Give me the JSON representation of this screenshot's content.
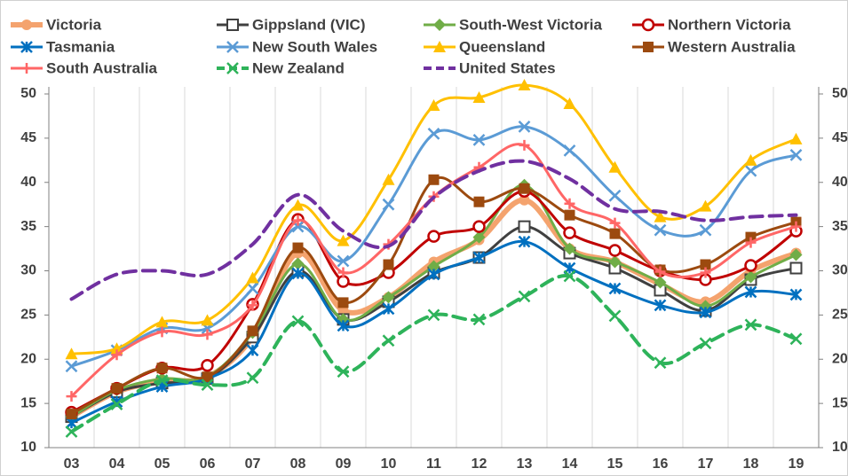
{
  "chart_data": {
    "type": "line",
    "categories": [
      "03",
      "04",
      "05",
      "06",
      "07",
      "08",
      "09",
      "10",
      "11",
      "12",
      "13",
      "14",
      "15",
      "16",
      "17",
      "18",
      "19"
    ],
    "ylim": [
      10,
      50
    ],
    "yticks": [
      10,
      15,
      20,
      25,
      30,
      35,
      40,
      45,
      50
    ],
    "y2lim": [
      10,
      50
    ],
    "y2ticks": [
      10,
      15,
      20,
      25,
      30,
      35,
      40,
      45,
      50
    ],
    "legend": "top",
    "series": [
      {
        "name": "Victoria",
        "color": "#f4a36e",
        "marker": "circle",
        "width": 6,
        "values": [
          13.5,
          16.3,
          17.5,
          18,
          22.5,
          32,
          25.5,
          27,
          31,
          33.5,
          38,
          32.5,
          31,
          28.5,
          26.5,
          30,
          32
        ]
      },
      {
        "name": "Gippsland (VIC)",
        "color": "#404040",
        "marker": "square-open",
        "width": 3,
        "values": [
          13.5,
          16.3,
          17.3,
          17.8,
          22.5,
          30,
          24.5,
          26.5,
          29.8,
          31.5,
          35,
          32,
          30.3,
          27.8,
          25.5,
          29,
          30.3
        ]
      },
      {
        "name": "South-West Victoria",
        "color": "#70ad47",
        "marker": "diamond",
        "width": 3,
        "values": [
          13.5,
          16.5,
          17.8,
          18,
          23,
          30.8,
          24.5,
          27,
          30.5,
          33.8,
          39.7,
          32.5,
          31,
          28.7,
          26,
          29.3,
          31.8
        ]
      },
      {
        "name": "Northern Victoria",
        "color": "#c00000",
        "marker": "circle-open",
        "width": 3,
        "values": [
          14,
          16.7,
          19,
          19.3,
          26.2,
          35.8,
          28.8,
          29.8,
          33.9,
          35,
          39,
          34.3,
          32.3,
          30,
          29,
          30.6,
          34.5
        ]
      },
      {
        "name": "Tasmania",
        "color": "#0070c0",
        "marker": "star",
        "width": 3,
        "values": [
          12.8,
          15.2,
          16.9,
          17.8,
          21,
          29.7,
          23.8,
          25.7,
          29.6,
          31.5,
          33.3,
          30.3,
          28,
          26.1,
          25.3,
          27.6,
          27.3
        ]
      },
      {
        "name": "New South Wales",
        "color": "#5b9bd5",
        "marker": "x",
        "width": 3,
        "values": [
          19.2,
          21,
          23.5,
          23.5,
          28,
          35,
          31.1,
          37.5,
          45.5,
          44.8,
          46.3,
          43.6,
          38.5,
          34.6,
          34.6,
          41.3,
          43.1
        ]
      },
      {
        "name": "Queensland",
        "color": "#ffc000",
        "marker": "triangle",
        "width": 3,
        "values": [
          20.6,
          21.2,
          24.2,
          24.4,
          29.2,
          37.4,
          33.4,
          40.3,
          48.7,
          49.6,
          51,
          48.9,
          41.7,
          36.1,
          37.3,
          42.5,
          44.9
        ]
      },
      {
        "name": "Western Australia",
        "color": "#9c4a0f",
        "marker": "square",
        "width": 3,
        "values": [
          13.8,
          16.7,
          19,
          18,
          23.2,
          32.6,
          26.4,
          30.7,
          40.3,
          37.8,
          39.3,
          36.3,
          34.2,
          30.1,
          30.7,
          33.8,
          35.5
        ]
      },
      {
        "name": "South Australia",
        "color": "#ff6666",
        "marker": "plus",
        "width": 3,
        "values": [
          15.8,
          20.5,
          23.1,
          22.8,
          26.1,
          35.7,
          29.8,
          33,
          38.4,
          41.7,
          44.2,
          37.6,
          35.4,
          29.9,
          29.8,
          33.2,
          35
        ]
      },
      {
        "name": "New Zealand",
        "color": "#2eb35a",
        "marker": "x",
        "width": 4,
        "dashed": true,
        "values": [
          11.8,
          14.9,
          17.6,
          17.1,
          17.9,
          24.3,
          18.6,
          22.1,
          25,
          24.5,
          27.1,
          29.4,
          24.9,
          19.6,
          21.8,
          23.9,
          22.3
        ]
      },
      {
        "name": "United States",
        "color": "#7030a0",
        "marker": "none",
        "width": 4,
        "dashed": true,
        "values": [
          26.8,
          29.6,
          30,
          29.6,
          33,
          38.6,
          34.5,
          32.8,
          38.3,
          41.3,
          42.4,
          40.4,
          37,
          36.7,
          35.7,
          36.1,
          36.3
        ]
      }
    ]
  }
}
